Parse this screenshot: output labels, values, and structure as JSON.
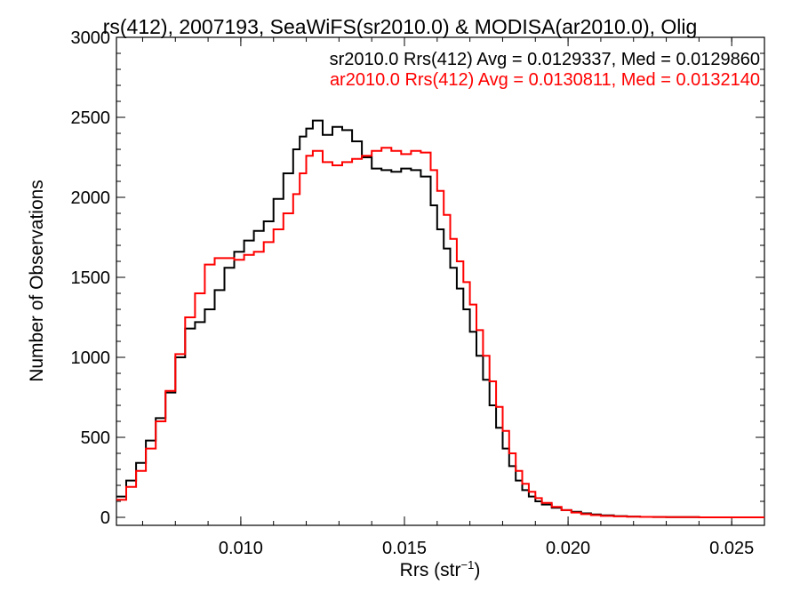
{
  "chart_data": {
    "type": "line",
    "step": true,
    "title": "rs(412), 2007193, SeaWiFS(sr2010.0) & MODISA(ar2010.0), Olig",
    "xlabel": "Rrs (str",
    "xlabel_sup": "−1",
    "xlabel_end": ")",
    "ylabel": "Number of Observations",
    "xlim": [
      0.0062,
      0.026
    ],
    "ylim": [
      -50,
      3000
    ],
    "x_ticks": [
      {
        "value": 0.01,
        "label": "0.010"
      },
      {
        "value": 0.015,
        "label": "0.015"
      },
      {
        "value": 0.02,
        "label": "0.020"
      },
      {
        "value": 0.025,
        "label": "0.025"
      }
    ],
    "y_ticks": [
      {
        "value": 0,
        "label": "0"
      },
      {
        "value": 500,
        "label": "500"
      },
      {
        "value": 1000,
        "label": "1000"
      },
      {
        "value": 1500,
        "label": "1500"
      },
      {
        "value": 2000,
        "label": "2000"
      },
      {
        "value": 2500,
        "label": "2500"
      },
      {
        "value": 3000,
        "label": "3000"
      }
    ],
    "legend": [
      {
        "text": "sr2010.0 Rrs(412) Avg = 0.0129337, Med = 0.0129860",
        "color": "#000000"
      },
      {
        "text": "ar2010.0 Rrs(412) Avg = 0.0130811, Med = 0.0132140",
        "color": "#ff0000"
      }
    ],
    "series": [
      {
        "color": "#000000",
        "x": [
          0.0062,
          0.0065,
          0.0068,
          0.0071,
          0.0074,
          0.0077,
          0.008,
          0.0083,
          0.0086,
          0.0089,
          0.0092,
          0.0095,
          0.0098,
          0.0101,
          0.0104,
          0.0107,
          0.011,
          0.0113,
          0.0116,
          0.0118,
          0.012,
          0.0122,
          0.0125,
          0.0128,
          0.0131,
          0.0134,
          0.0137,
          0.014,
          0.0143,
          0.0146,
          0.0149,
          0.0152,
          0.0155,
          0.0158,
          0.016,
          0.0162,
          0.0164,
          0.0166,
          0.0168,
          0.017,
          0.0172,
          0.0174,
          0.0176,
          0.0178,
          0.018,
          0.0182,
          0.0184,
          0.0186,
          0.0188,
          0.019,
          0.0192,
          0.0195,
          0.0198,
          0.0201,
          0.0204,
          0.0207,
          0.021,
          0.0214,
          0.0218,
          0.0222,
          0.0226,
          0.023,
          0.0235,
          0.024,
          0.0245,
          0.025,
          0.0255,
          0.026
        ],
        "y": [
          130,
          230,
          340,
          480,
          620,
          780,
          1000,
          1180,
          1220,
          1300,
          1420,
          1560,
          1660,
          1730,
          1790,
          1850,
          1990,
          2150,
          2300,
          2380,
          2430,
          2480,
          2390,
          2440,
          2420,
          2350,
          2250,
          2180,
          2170,
          2160,
          2180,
          2170,
          2130,
          1950,
          1800,
          1680,
          1560,
          1430,
          1300,
          1160,
          1010,
          860,
          700,
          560,
          430,
          320,
          230,
          170,
          130,
          100,
          80,
          60,
          45,
          35,
          25,
          18,
          12,
          8,
          5,
          3,
          2,
          1,
          1,
          0,
          0,
          0,
          0,
          0
        ]
      },
      {
        "color": "#ff0000",
        "x": [
          0.0062,
          0.0065,
          0.0068,
          0.0071,
          0.0074,
          0.0077,
          0.008,
          0.0083,
          0.0086,
          0.0089,
          0.0092,
          0.0095,
          0.0098,
          0.0101,
          0.0104,
          0.0107,
          0.011,
          0.0113,
          0.0116,
          0.0118,
          0.012,
          0.0122,
          0.0125,
          0.0128,
          0.0131,
          0.0134,
          0.0137,
          0.014,
          0.0143,
          0.0146,
          0.0149,
          0.0152,
          0.0155,
          0.0158,
          0.016,
          0.0162,
          0.0164,
          0.0166,
          0.0168,
          0.017,
          0.0172,
          0.0174,
          0.0176,
          0.0178,
          0.018,
          0.0182,
          0.0184,
          0.0186,
          0.0188,
          0.019,
          0.0192,
          0.0195,
          0.0198,
          0.0201,
          0.0204,
          0.0207,
          0.021,
          0.0214,
          0.0218,
          0.0222,
          0.0226,
          0.023,
          0.0235,
          0.024,
          0.0245,
          0.025,
          0.0255,
          0.026
        ],
        "y": [
          110,
          190,
          290,
          430,
          600,
          790,
          1020,
          1250,
          1400,
          1580,
          1620,
          1620,
          1610,
          1640,
          1660,
          1720,
          1800,
          1900,
          2020,
          2150,
          2260,
          2290,
          2220,
          2200,
          2220,
          2240,
          2260,
          2290,
          2310,
          2290,
          2270,
          2290,
          2280,
          2170,
          2040,
          1890,
          1740,
          1600,
          1470,
          1330,
          1170,
          1010,
          850,
          690,
          540,
          400,
          290,
          210,
          160,
          120,
          90,
          65,
          45,
          30,
          20,
          14,
          9,
          6,
          4,
          3,
          2,
          1,
          1,
          0,
          0,
          0,
          0,
          0
        ]
      }
    ]
  }
}
